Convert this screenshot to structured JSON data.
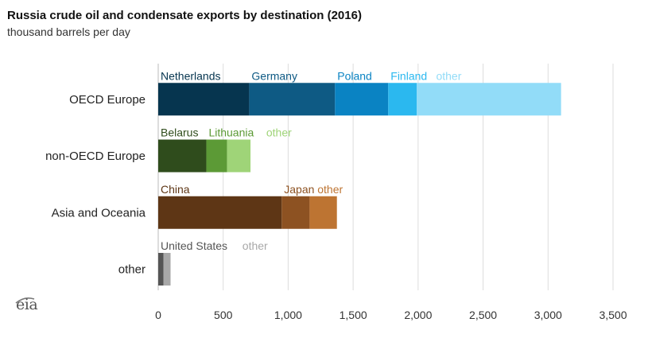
{
  "header": {
    "title": "Russia crude oil and condensate exports by destination (2016)",
    "subtitle": "thousand barrels per day"
  },
  "logo": {
    "text": "eia",
    "icon": "eia-logo-icon"
  },
  "chart_data": {
    "type": "bar",
    "orientation": "horizontal",
    "stacked": true,
    "title": "Russia crude oil and condensate exports by destination (2016)",
    "ylabel": "thousand barrels per day",
    "xlim": [
      0,
      3500
    ],
    "xticks": [
      "0",
      "500",
      "1,000",
      "1,500",
      "2,000",
      "2,500",
      "3,000",
      "3,500"
    ],
    "grid": "vertical",
    "categories": [
      {
        "label": "OECD Europe",
        "segments": [
          {
            "name": "Netherlands",
            "value": 700,
            "color": "#06354f",
            "label_color": "#06354f"
          },
          {
            "name": "Germany",
            "value": 660,
            "color": "#0e5a84",
            "label_color": "#0e5a84"
          },
          {
            "name": "Poland",
            "value": 410,
            "color": "#0a83c3",
            "label_color": "#0a83c3"
          },
          {
            "name": "Finland",
            "value": 220,
            "color": "#2bb8ef",
            "label_color": "#2bb8ef"
          },
          {
            "name": "other",
            "value": 1110,
            "color": "#92dcf8",
            "label_color": "#92dcf8"
          }
        ]
      },
      {
        "label": "non-OECD Europe",
        "segments": [
          {
            "name": "Belarus",
            "value": 370,
            "color": "#2f4c1c",
            "label_color": "#2f4c1c"
          },
          {
            "name": "Lithuania",
            "value": 160,
            "color": "#5c9a36",
            "label_color": "#5c9a36"
          },
          {
            "name": "other",
            "value": 180,
            "color": "#9fd478",
            "label_color": "#9fd478"
          }
        ]
      },
      {
        "label": "Asia and Oceania",
        "segments": [
          {
            "name": "China",
            "value": 950,
            "color": "#5e3615",
            "label_color": "#5e3615"
          },
          {
            "name": "Japan",
            "value": 215,
            "color": "#8d5222",
            "label_color": "#8d5222"
          },
          {
            "name": "other",
            "value": 210,
            "color": "#bd7432",
            "label_color": "#bd7432"
          }
        ]
      },
      {
        "label": "other",
        "segments": [
          {
            "name": "United States",
            "value": 40,
            "color": "#555555",
            "label_color": "#555555"
          },
          {
            "name": "other",
            "value": 55,
            "color": "#a8a8a8",
            "label_color": "#a8a8a8"
          }
        ]
      }
    ]
  }
}
